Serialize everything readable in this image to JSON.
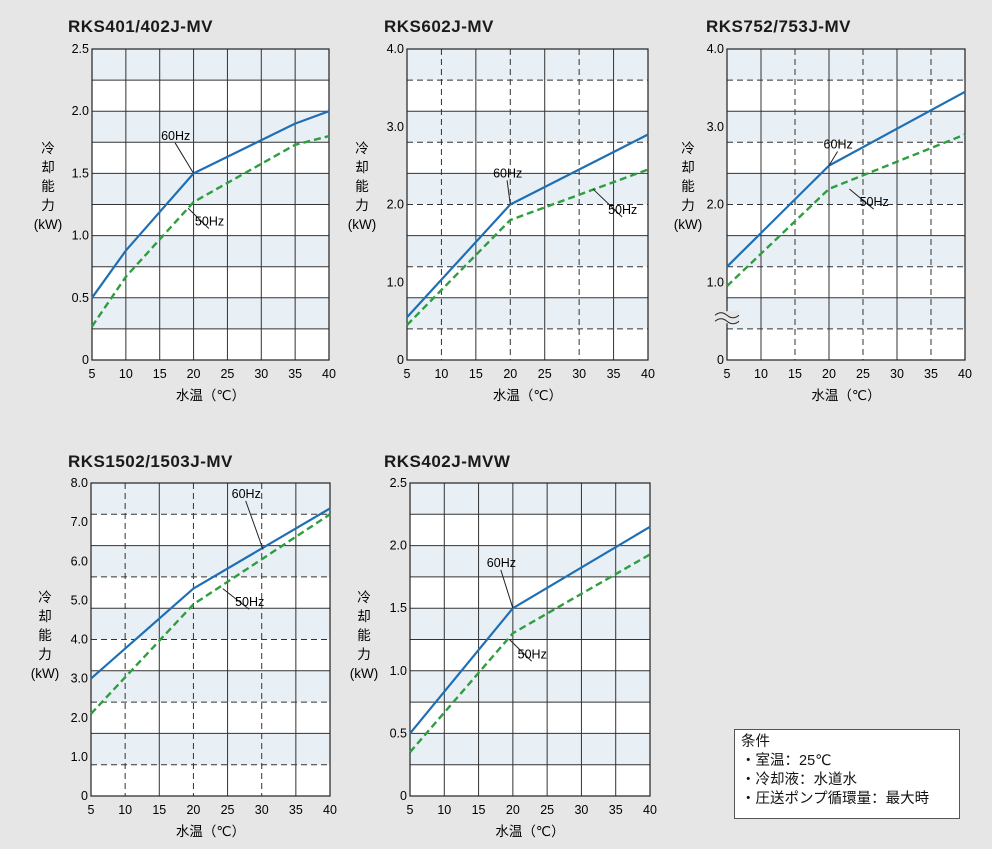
{
  "chart_data": [
    {
      "type": "line",
      "title": "RKS401/402J-MV",
      "xlabel": "水温（℃）",
      "ylabel": [
        "冷",
        "却",
        "能",
        "力",
        "(kW)"
      ],
      "xlim": [
        5,
        40
      ],
      "ylim": [
        0,
        2.5
      ],
      "x_ticks": [
        "5",
        "10",
        "15",
        "20",
        "25",
        "30",
        "35",
        "40"
      ],
      "y_ticks": [
        {
          "value": 0,
          "label": "0"
        },
        {
          "value": 0.5,
          "label": "0.5"
        },
        {
          "value": 1.0,
          "label": "1.0"
        },
        {
          "value": 1.5,
          "label": "1.5"
        },
        {
          "value": 2.0,
          "label": "2.0"
        },
        {
          "value": 2.5,
          "label": "2.5"
        }
      ],
      "series": [
        {
          "name": "60Hz",
          "style": "solid",
          "color": "#1f6fb5",
          "points": [
            [
              5,
              0.5
            ],
            [
              10,
              0.88
            ],
            [
              20,
              1.5
            ],
            [
              35,
              1.9
            ],
            [
              40,
              2.0
            ]
          ]
        },
        {
          "name": "50Hz",
          "style": "dashed",
          "color": "#2e9e3f",
          "points": [
            [
              5,
              0.27
            ],
            [
              10,
              0.67
            ],
            [
              20,
              1.27
            ],
            [
              35,
              1.73
            ],
            [
              40,
              1.8
            ]
          ]
        }
      ],
      "annotations": [
        {
          "text": "60Hz",
          "x": 15.2,
          "y": 1.77,
          "target": [
            20,
            1.5
          ]
        },
        {
          "text": "50Hz",
          "x": 20.2,
          "y": 1.08,
          "target": [
            19.2,
            1.22
          ]
        }
      ]
    },
    {
      "type": "line",
      "title": "RKS602J-MV",
      "xlabel": "水温（℃）",
      "ylabel": [
        "冷",
        "却",
        "能",
        "力",
        "(kW)"
      ],
      "xlim": [
        5,
        40
      ],
      "ylim": [
        0,
        4.0
      ],
      "x_ticks": [
        "5",
        "10",
        "15",
        "20",
        "25",
        "30",
        "35",
        "40"
      ],
      "y_ticks": [
        {
          "value": 0,
          "label": "0"
        },
        {
          "value": 1.0,
          "label": "1.0"
        },
        {
          "value": 2.0,
          "label": "2.0"
        },
        {
          "value": 3.0,
          "label": "3.0"
        },
        {
          "value": 4.0,
          "label": "4.0"
        }
      ],
      "series": [
        {
          "name": "60Hz",
          "style": "solid",
          "color": "#1f6fb5",
          "points": [
            [
              5,
              0.55
            ],
            [
              20,
              2.0
            ],
            [
              40,
              2.9
            ]
          ]
        },
        {
          "name": "50Hz",
          "style": "dashed",
          "color": "#2e9e3f",
          "points": [
            [
              5,
              0.45
            ],
            [
              20,
              1.8
            ],
            [
              40,
              2.45
            ]
          ]
        }
      ],
      "annotations": [
        {
          "text": "60Hz",
          "x": 17.5,
          "y": 2.35,
          "target": [
            20,
            2.0
          ]
        },
        {
          "text": "50Hz",
          "x": 34.2,
          "y": 1.88,
          "target": [
            32,
            2.2
          ]
        }
      ]
    },
    {
      "type": "line",
      "title": "RKS752/753J-MV",
      "xlabel": "水温（℃）",
      "ylabel": [
        "冷",
        "却",
        "能",
        "力",
        "(kW)"
      ],
      "xlim": [
        5,
        40
      ],
      "ylim": [
        0,
        4.0
      ],
      "axis_break": true,
      "x_ticks": [
        "5",
        "10",
        "15",
        "20",
        "25",
        "30",
        "35",
        "40"
      ],
      "y_ticks": [
        {
          "value": 0,
          "label": "0"
        },
        {
          "value": 1.0,
          "label": "1.0"
        },
        {
          "value": 2.0,
          "label": "2.0"
        },
        {
          "value": 3.0,
          "label": "3.0"
        },
        {
          "value": 4.0,
          "label": "4.0"
        }
      ],
      "series": [
        {
          "name": "60Hz",
          "style": "solid",
          "color": "#1f6fb5",
          "points": [
            [
              5,
              1.2
            ],
            [
              20,
              2.5
            ],
            [
              40,
              3.45
            ]
          ]
        },
        {
          "name": "50Hz",
          "style": "dashed",
          "color": "#2e9e3f",
          "points": [
            [
              5,
              0.95
            ],
            [
              20,
              2.2
            ],
            [
              40,
              2.9
            ]
          ]
        }
      ],
      "annotations": [
        {
          "text": "60Hz",
          "x": 19.2,
          "y": 2.72,
          "target": [
            20,
            2.5
          ]
        },
        {
          "text": "50Hz",
          "x": 24.5,
          "y": 1.98,
          "target": [
            23,
            2.2
          ]
        }
      ]
    },
    {
      "type": "line",
      "title": "RKS1502/1503J-MV",
      "xlabel": "水温（℃）",
      "ylabel": [
        "冷",
        "却",
        "能",
        "力",
        "(kW)"
      ],
      "xlim": [
        5,
        40
      ],
      "ylim": [
        0,
        8.0
      ],
      "x_ticks": [
        "5",
        "10",
        "15",
        "20",
        "25",
        "30",
        "35",
        "40"
      ],
      "y_ticks": [
        {
          "value": 0,
          "label": "0"
        },
        {
          "value": 1.0,
          "label": "1.0"
        },
        {
          "value": 2.0,
          "label": "2.0"
        },
        {
          "value": 3.0,
          "label": "3.0"
        },
        {
          "value": 4.0,
          "label": "4.0"
        },
        {
          "value": 5.0,
          "label": "5.0"
        },
        {
          "value": 6.0,
          "label": "6.0"
        },
        {
          "value": 7.0,
          "label": "7.0"
        },
        {
          "value": 8.0,
          "label": "8.0"
        }
      ],
      "series": [
        {
          "name": "60Hz",
          "style": "solid",
          "color": "#1f6fb5",
          "points": [
            [
              5,
              3.0
            ],
            [
              20,
              5.3
            ],
            [
              40,
              7.35
            ]
          ]
        },
        {
          "name": "50Hz",
          "style": "dashed",
          "color": "#2e9e3f",
          "points": [
            [
              5,
              2.1
            ],
            [
              20,
              4.9
            ],
            [
              40,
              7.2
            ]
          ]
        }
      ],
      "annotations": [
        {
          "text": "60Hz",
          "x": 25.6,
          "y": 7.62,
          "target": [
            30.2,
            6.3
          ]
        },
        {
          "text": "50Hz",
          "x": 26.1,
          "y": 4.85,
          "target": [
            24.3,
            5.3
          ]
        }
      ]
    },
    {
      "type": "line",
      "title": "RKS402J-MVW",
      "xlabel": "水温（℃）",
      "ylabel": [
        "冷",
        "却",
        "能",
        "力",
        "(kW)"
      ],
      "xlim": [
        5,
        40
      ],
      "ylim": [
        0,
        2.5
      ],
      "x_ticks": [
        "5",
        "10",
        "15",
        "20",
        "25",
        "30",
        "35",
        "40"
      ],
      "y_ticks": [
        {
          "value": 0,
          "label": "0"
        },
        {
          "value": 0.5,
          "label": "0.5"
        },
        {
          "value": 1.0,
          "label": "1.0"
        },
        {
          "value": 1.5,
          "label": "1.5"
        },
        {
          "value": 2.0,
          "label": "2.0"
        },
        {
          "value": 2.5,
          "label": "2.5"
        }
      ],
      "series": [
        {
          "name": "60Hz",
          "style": "solid",
          "color": "#1f6fb5",
          "points": [
            [
              5,
              0.5
            ],
            [
              20,
              1.5
            ],
            [
              40,
              2.15
            ]
          ]
        },
        {
          "name": "50Hz",
          "style": "dashed",
          "color": "#2e9e3f",
          "points": [
            [
              5,
              0.35
            ],
            [
              20,
              1.3
            ],
            [
              40,
              1.93
            ]
          ]
        }
      ],
      "annotations": [
        {
          "text": "60Hz",
          "x": 16.2,
          "y": 1.83,
          "target": [
            20,
            1.5
          ]
        },
        {
          "text": "50Hz",
          "x": 20.7,
          "y": 1.1,
          "target": [
            19.5,
            1.25
          ]
        }
      ]
    }
  ],
  "conditions": {
    "heading": "条件",
    "items": [
      "・室温：25℃",
      "・冷却液：水道水",
      "・圧送ポンプ循環量：最大時"
    ]
  }
}
